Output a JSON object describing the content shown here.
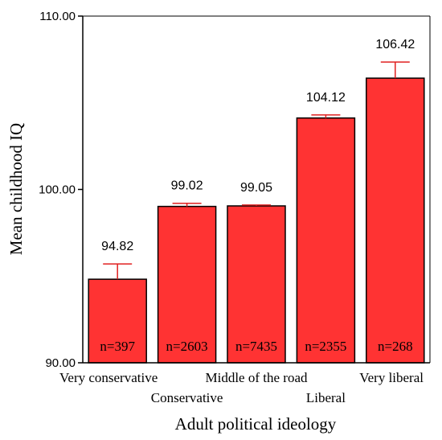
{
  "chart_data": {
    "type": "bar",
    "xlabel": "Adult political ideology",
    "ylabel": "Mean childhood IQ",
    "ylim": [
      90,
      110
    ],
    "yticks": [
      90,
      100,
      110
    ],
    "ytick_labels": [
      "90.00",
      "100.00",
      "110.00"
    ],
    "categories": [
      "Very conservative",
      "Conservative",
      "Middle of the road",
      "Liberal",
      "Very liberal"
    ],
    "values": [
      94.82,
      99.02,
      99.05,
      104.12,
      106.42
    ],
    "value_labels": [
      "94.82",
      "99.02",
      "99.05",
      "104.12",
      "106.42"
    ],
    "error_upper": [
      95.7,
      99.2,
      99.1,
      104.3,
      107.35
    ],
    "n_labels": [
      "n=397",
      "n=2603",
      "n=7435",
      "n=2355",
      "n=268"
    ],
    "bar_color": "#FF3333",
    "error_color": "#E02020",
    "grid": false
  }
}
